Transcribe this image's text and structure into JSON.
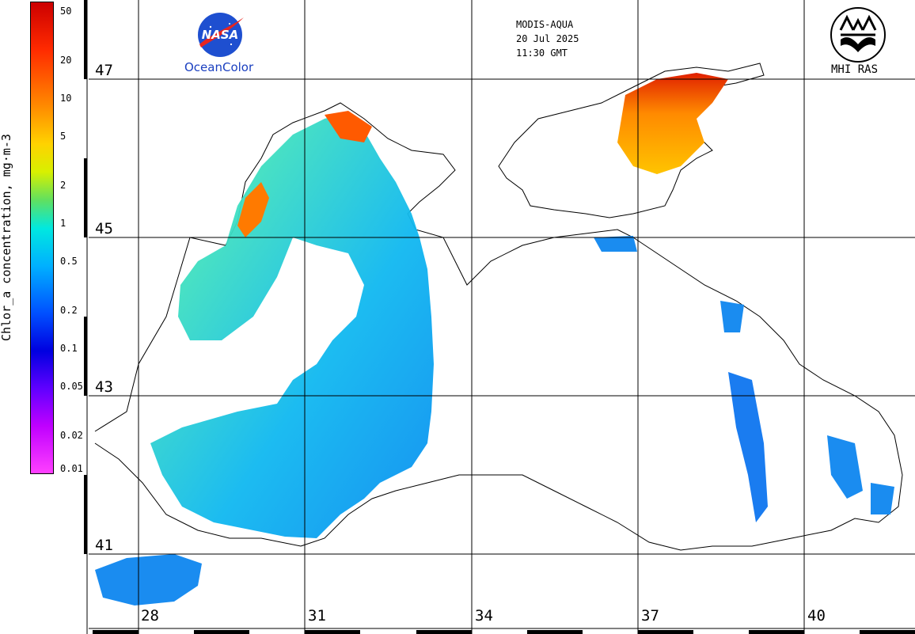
{
  "colorbar": {
    "title": "Chlor_a concentration, mg·m-3",
    "ticks": [
      {
        "label": "50",
        "value": 50
      },
      {
        "label": "20",
        "value": 20
      },
      {
        "label": "10",
        "value": 10
      },
      {
        "label": "5",
        "value": 5
      },
      {
        "label": "2",
        "value": 2
      },
      {
        "label": "1",
        "value": 1
      },
      {
        "label": "0.5",
        "value": 0.5
      },
      {
        "label": "0.2",
        "value": 0.2
      },
      {
        "label": "0.1",
        "value": 0.1
      },
      {
        "label": "0.05",
        "value": 0.05
      },
      {
        "label": "0.02",
        "value": 0.02
      },
      {
        "label": "0.01",
        "value": 0.01
      }
    ],
    "range": [
      0.01,
      60
    ],
    "scale": "log"
  },
  "header": {
    "sensor": "MODIS-AQUA",
    "date": "20 Jul 2025",
    "time": "11:30 GMT"
  },
  "logos": {
    "nasa": "NASA",
    "oceancolor": "OceanColor",
    "mhi": "MHI RAS"
  },
  "grid": {
    "latitudes": [
      {
        "label": "47",
        "value": 47
      },
      {
        "label": "45",
        "value": 45
      },
      {
        "label": "43",
        "value": 43
      },
      {
        "label": "41",
        "value": 41
      }
    ],
    "longitudes": [
      {
        "label": "28",
        "value": 28
      },
      {
        "label": "31",
        "value": 31
      },
      {
        "label": "34",
        "value": 34
      },
      {
        "label": "37",
        "value": 37
      },
      {
        "label": "40",
        "value": 40
      }
    ]
  },
  "icons": {
    "nasa": "nasa-meatball-icon",
    "mhi": "mhi-ras-emblem-icon"
  }
}
